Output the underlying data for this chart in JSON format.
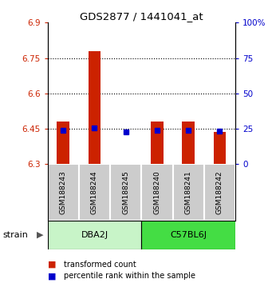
{
  "title": "GDS2877 / 1441041_at",
  "samples": [
    "GSM188243",
    "GSM188244",
    "GSM188245",
    "GSM188240",
    "GSM188241",
    "GSM188242"
  ],
  "group_labels": [
    "DBA2J",
    "C57BL6J"
  ],
  "red_bottom": [
    6.3,
    6.3,
    6.3,
    6.3,
    6.3,
    6.3
  ],
  "red_top": [
    6.48,
    6.78,
    6.3,
    6.48,
    6.48,
    6.435
  ],
  "blue_y": [
    6.445,
    6.455,
    6.437,
    6.445,
    6.443,
    6.44
  ],
  "ylim_left": [
    6.3,
    6.9
  ],
  "yticks_left": [
    6.3,
    6.45,
    6.6,
    6.75,
    6.9
  ],
  "ytick_labels_left": [
    "6.3",
    "6.45",
    "6.6",
    "6.75",
    "6.9"
  ],
  "yticks_right": [
    0,
    25,
    50,
    75,
    100
  ],
  "ytick_labels_right": [
    "0",
    "25",
    "50",
    "75",
    "100%"
  ],
  "hlines": [
    6.45,
    6.6,
    6.75
  ],
  "bar_width": 0.4,
  "red_color": "#CC2200",
  "blue_color": "#0000CC",
  "sample_bg_color": "#CCCCCC",
  "group1_bg": "#C8F4C8",
  "group2_bg": "#44DD44",
  "legend_red": "transformed count",
  "legend_blue": "percentile rank within the sample"
}
